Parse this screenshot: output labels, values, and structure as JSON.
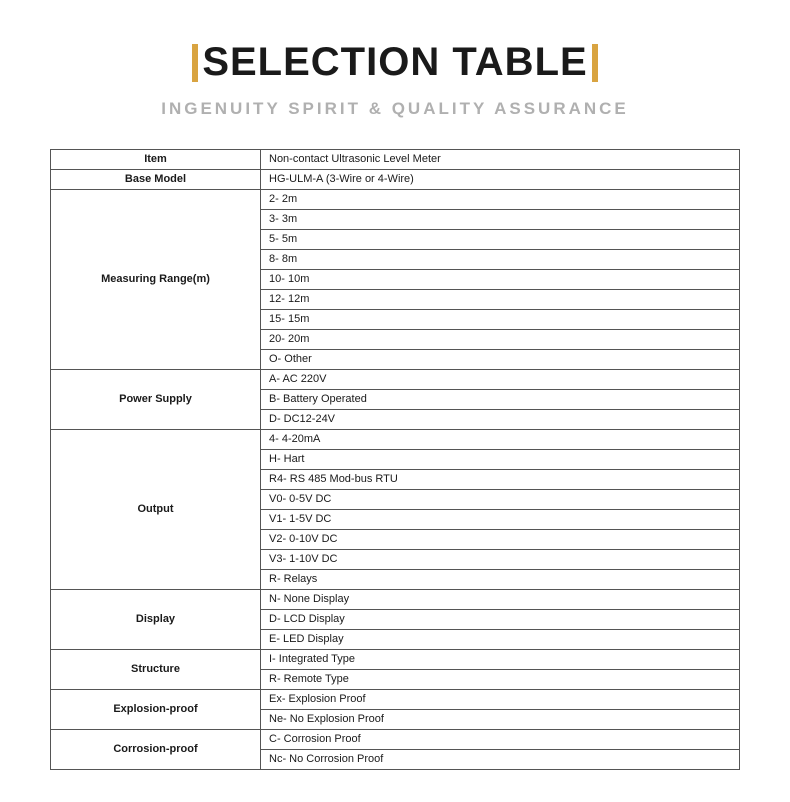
{
  "header": {
    "title": "SELECTION TABLE",
    "subtitle": "INGENUITY SPIRIT & QUALITY ASSURANCE",
    "accent_color": "#d9a441",
    "title_color": "#1a1a1a",
    "subtitle_color": "#b0b0b0",
    "title_fontsize": 40,
    "subtitle_fontsize": 17
  },
  "table": {
    "border_color": "#555555",
    "label_width": 210,
    "font_size": 11,
    "groups": [
      {
        "label": "Item",
        "values": [
          "Non-contact Ultrasonic Level Meter"
        ]
      },
      {
        "label": "Base Model",
        "values": [
          "HG-ULM-A (3-Wire or 4-Wire)"
        ]
      },
      {
        "label": "Measuring Range(m)",
        "values": [
          "2- 2m",
          "3- 3m",
          "5- 5m",
          "8- 8m",
          "10- 10m",
          "12- 12m",
          "15- 15m",
          "20- 20m",
          "O- Other"
        ]
      },
      {
        "label": "Power Supply",
        "values": [
          "A- AC 220V",
          "B- Battery Operated",
          "D- DC12-24V"
        ]
      },
      {
        "label": "Output",
        "values": [
          "4- 4-20mA",
          "H- Hart",
          "R4- RS 485 Mod-bus RTU",
          "V0- 0-5V DC",
          "V1- 1-5V DC",
          "V2- 0-10V DC",
          "V3- 1-10V DC",
          "R- Relays"
        ]
      },
      {
        "label": "Display",
        "values": [
          "N- None Display",
          "D- LCD Display",
          "E- LED Display"
        ]
      },
      {
        "label": "Structure",
        "values": [
          "I- Integrated Type",
          "R- Remote Type"
        ]
      },
      {
        "label": "Explosion-proof",
        "values": [
          "Ex- Explosion Proof",
          "Ne- No Explosion Proof"
        ]
      },
      {
        "label": "Corrosion-proof",
        "values": [
          "C-  Corrosion Proof",
          "Nc- No Corrosion Proof"
        ]
      }
    ]
  }
}
